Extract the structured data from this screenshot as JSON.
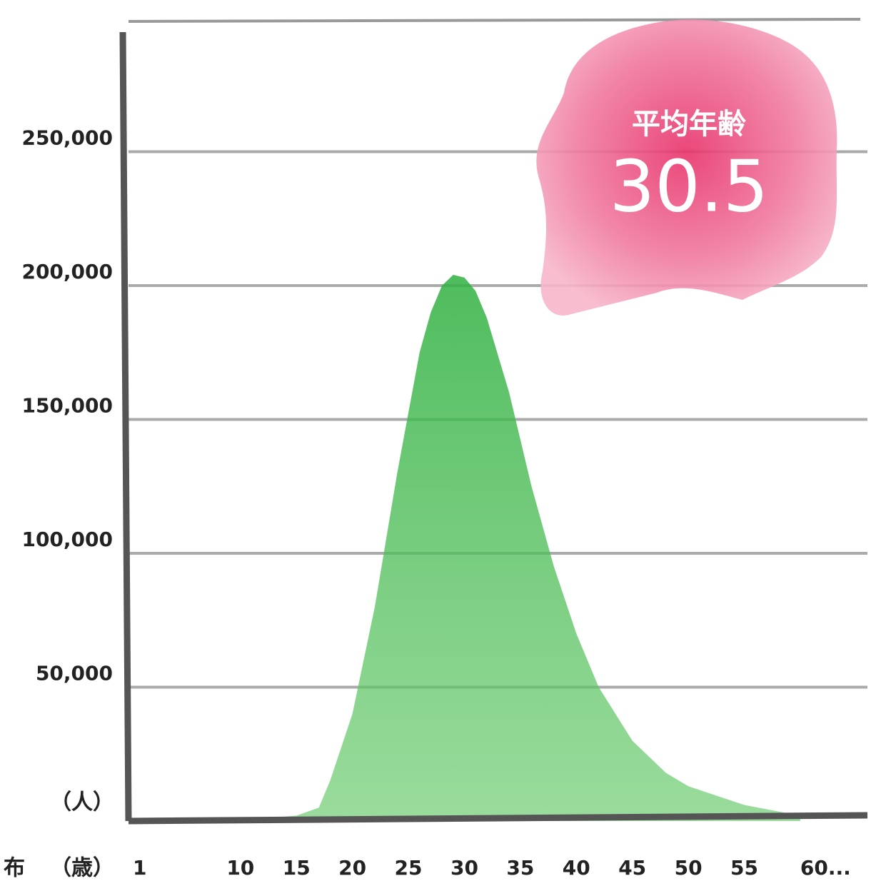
{
  "chart_data": {
    "type": "area",
    "y_unit_label": "（人）",
    "x_unit_label": "（歳）",
    "cut_label": "布",
    "badge": {
      "title": "平均年齢",
      "value": "30.5"
    },
    "x": [
      10,
      12,
      15,
      17,
      18,
      20,
      22,
      24,
      26,
      27,
      28,
      29,
      30,
      31,
      32,
      34,
      36,
      38,
      40,
      42,
      45,
      48,
      50,
      55,
      60
    ],
    "values": [
      1000,
      1000,
      2000,
      5000,
      15000,
      40000,
      80000,
      130000,
      175000,
      190000,
      200000,
      204000,
      203000,
      198000,
      188000,
      160000,
      125000,
      95000,
      70000,
      50000,
      30000,
      18000,
      13000,
      6000,
      2000
    ],
    "color": "#3cb54a",
    "xlim": [
      0,
      66
    ],
    "xticks": [
      1,
      10,
      15,
      20,
      25,
      30,
      35,
      40,
      45,
      50,
      55,
      {
        "value": 60,
        "label": "60..."
      }
    ],
    "ylim": [
      0,
      300000
    ],
    "yticks": [
      {
        "value": 50000,
        "label": "50,000"
      },
      {
        "value": 100000,
        "label": "100,000"
      },
      {
        "value": 150000,
        "label": "150,000"
      },
      {
        "value": 200000,
        "label": "200,000"
      },
      {
        "value": 250000,
        "label": "250,000"
      }
    ],
    "grid": true
  }
}
